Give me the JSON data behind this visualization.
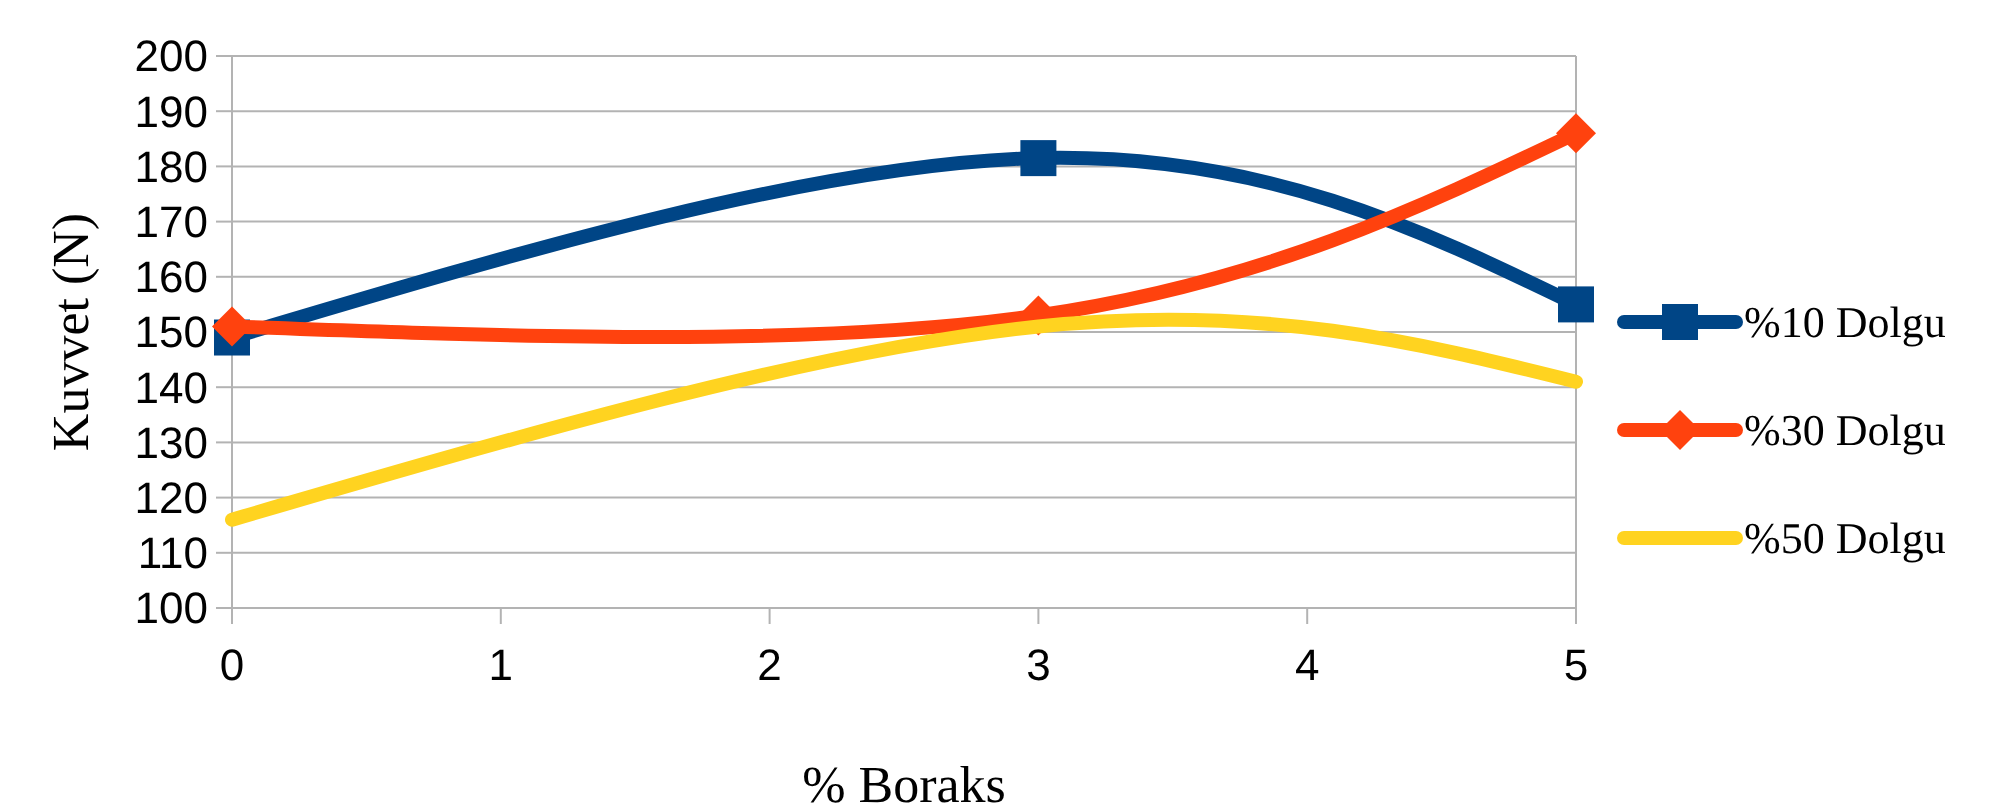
{
  "chart_data": {
    "type": "line",
    "xlabel": "% Boraks",
    "ylabel": "Kuvvet (N)",
    "x": [
      0,
      3,
      5
    ],
    "xlim": [
      0,
      5
    ],
    "xticks": [
      0,
      1,
      2,
      3,
      4,
      5
    ],
    "ylim": [
      100,
      200
    ],
    "yticks": [
      100,
      110,
      120,
      130,
      140,
      150,
      160,
      170,
      180,
      190,
      200
    ],
    "grid": "y",
    "legend": "right",
    "series": [
      {
        "name": "%10 Dolgu",
        "color": "#004586",
        "values": [
          149,
          181.5,
          155
        ],
        "marker": "square"
      },
      {
        "name": "%30 Dolgu",
        "color": "#ff420e",
        "values": [
          151,
          153,
          186
        ],
        "marker": "diamond"
      },
      {
        "name": "%50 Dolgu",
        "color": "#ffd320",
        "values": [
          116,
          151,
          141
        ],
        "marker": "none"
      }
    ]
  }
}
